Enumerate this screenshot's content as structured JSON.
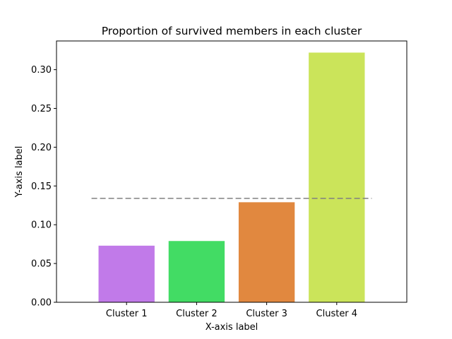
{
  "chart_data": {
    "type": "bar",
    "title": "Proportion of survived members in each cluster",
    "xlabel": "X-axis label",
    "ylabel": "Y-axis label",
    "categories": [
      "Cluster 1",
      "Cluster 2",
      "Cluster 3",
      "Cluster 4"
    ],
    "values": [
      0.073,
      0.079,
      0.129,
      0.322
    ],
    "colors": [
      "#c17ae9",
      "#42dc64",
      "#e1883f",
      "#cbe45a"
    ],
    "ylim": [
      0,
      0.337
    ],
    "yticks": [
      0.0,
      0.05,
      0.1,
      0.15,
      0.2,
      0.25,
      0.3
    ],
    "ytick_labels": [
      "0.00",
      "0.05",
      "0.10",
      "0.15",
      "0.20",
      "0.25",
      "0.30"
    ],
    "reference_line": {
      "value": 0.134,
      "style": "dashed",
      "color": "#808080"
    },
    "grid": false,
    "legend": "none"
  }
}
